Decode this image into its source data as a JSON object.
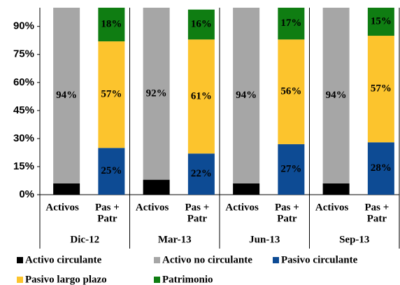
{
  "chart_data": {
    "type": "stacked-bar",
    "groups": [
      "Dic-12",
      "Mar-13",
      "Jun-13",
      "Sep-13"
    ],
    "categories": [
      [
        "Activos"
      ],
      [
        "Pas +",
        "Patr"
      ],
      [
        "Activos"
      ],
      [
        "Pas +",
        "Patr"
      ],
      [
        "Activos"
      ],
      [
        "Pas +",
        "Patr"
      ],
      [
        "Activos"
      ],
      [
        "Pas +",
        "Patr"
      ]
    ],
    "series": [
      {
        "name": "Activo circulante",
        "color": "#000000",
        "label_color": "#ffffff",
        "values": [
          6,
          null,
          8,
          null,
          6,
          null,
          6,
          null
        ],
        "value_labels": [
          "6%",
          null,
          "8%",
          null,
          "6%",
          null,
          "6%",
          null
        ]
      },
      {
        "name": "Activo no circulante",
        "color": "#a6a6a6",
        "label_color": "#000000",
        "values": [
          94,
          null,
          92,
          null,
          94,
          null,
          94,
          null
        ],
        "value_labels": [
          "94%",
          null,
          "92%",
          null,
          "94%",
          null,
          "94%",
          null
        ]
      },
      {
        "name": "Pasivo circulante",
        "color": "#0d4b94",
        "label_color": "#ffffff",
        "values": [
          null,
          25,
          null,
          22,
          null,
          27,
          null,
          28
        ],
        "value_labels": [
          null,
          "25%",
          null,
          "22%",
          null,
          "27%",
          null,
          "28%"
        ]
      },
      {
        "name": "Pasivo largo plazo",
        "color": "#fcc42d",
        "label_color": "#000000",
        "values": [
          null,
          57,
          null,
          61,
          null,
          56,
          null,
          57
        ],
        "value_labels": [
          null,
          "57%",
          null,
          "61%",
          null,
          "56%",
          null,
          "57%"
        ]
      },
      {
        "name": "Patrimonio",
        "color": "#0f7d12",
        "label_color": "#ffffff",
        "values": [
          null,
          18,
          null,
          16,
          null,
          17,
          null,
          15
        ],
        "value_labels": [
          null,
          "18%",
          null,
          "16%",
          null,
          "17%",
          null,
          "15%"
        ]
      }
    ],
    "ylim": [
      0,
      100
    ],
    "yticks": [
      {
        "value": 0,
        "label": "0%"
      },
      {
        "value": 15,
        "label": "15%"
      },
      {
        "value": 30,
        "label": "30%"
      },
      {
        "value": 45,
        "label": "45%"
      },
      {
        "value": 60,
        "label": "60%"
      },
      {
        "value": 75,
        "label": "75%"
      },
      {
        "value": 90,
        "label": "90%"
      }
    ],
    "grid": false
  }
}
